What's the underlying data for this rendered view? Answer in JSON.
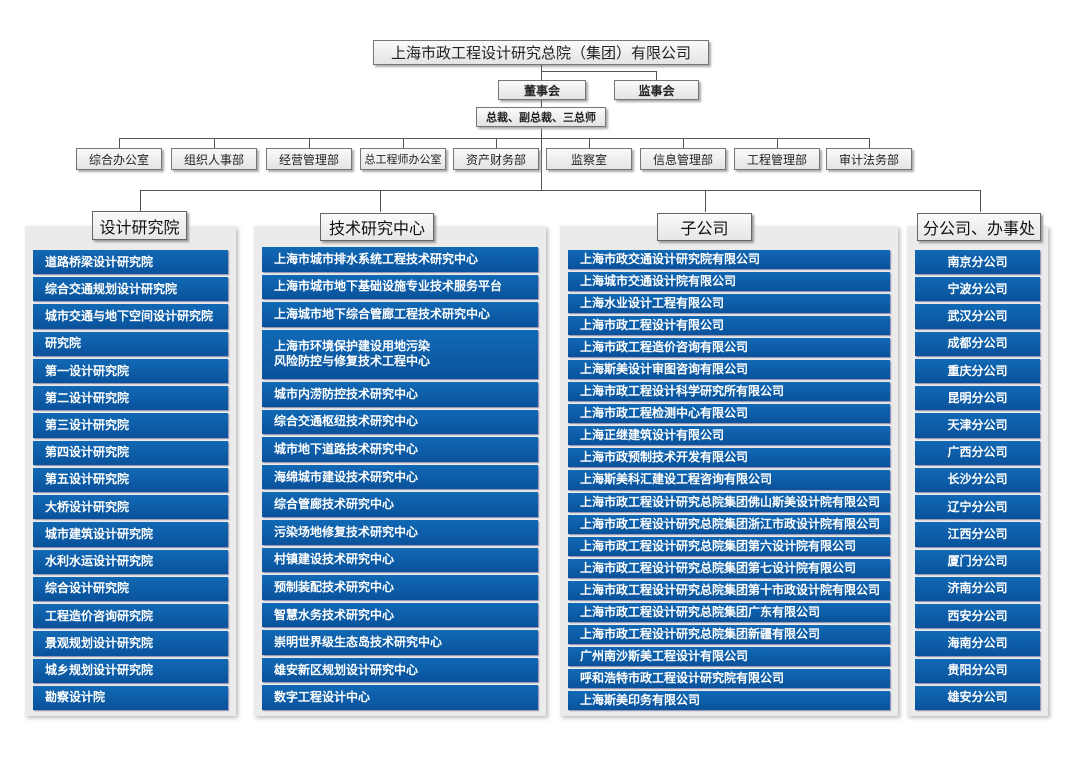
{
  "top": {
    "company": "上海市政工程设计研究总院（集团）有限公司",
    "board": "董事会",
    "supervisors": "监事会",
    "executives": "总裁、副总裁、三总师"
  },
  "departments": [
    "综合办公室",
    "组织人事部",
    "经营管理部",
    "总工程师办公室",
    "资产财务部",
    "监察室",
    "信息管理部",
    "工程管理部",
    "审计法务部"
  ],
  "columns": [
    {
      "title": "设计研究院",
      "items": [
        "道路桥梁设计研究院",
        "综合交通规划设计研究院",
        "城市交通与地下空间设计研究院",
        "研究院",
        "第一设计研究院",
        "第二设计研究院",
        "第三设计研究院",
        "第四设计研究院",
        "第五设计研究院",
        "大桥设计研究院",
        "城市建筑设计研究院",
        "水利水运设计研究院",
        "综合设计研究院",
        "工程造价咨询研究院",
        "景观规划设计研究院",
        "城乡规划设计研究院",
        "勘察设计院"
      ]
    },
    {
      "title": "技术研究中心",
      "items": [
        "上海市城市排水系统工程技术研究中心",
        "上海市城市地下基础设施专业技术服务平台",
        "上海城市地下综合管廊工程技术研究中心",
        "上海市环境保护建设用地污染\n风险防控与修复技术工程中心",
        "城市内涝防控技术研究中心",
        "综合交通枢纽技术研究中心",
        "城市地下道路技术研究中心",
        "海绵城市建设技术研究中心",
        "综合管廊技术研究中心",
        "污染场地修复技术研究中心",
        "村镇建设技术研究中心",
        "预制装配技术研究中心",
        "智慧水务技术研究中心",
        "崇明世界级生态岛技术研究中心",
        "雄安新区规划设计研究中心",
        "数字工程设计中心"
      ]
    },
    {
      "title": "子公司",
      "items": [
        "上海市政交通设计研究院有限公司",
        "上海城市交通设计院有限公司",
        "上海水业设计工程有限公司",
        "上海市政工程设计有限公司",
        "上海市政工程造价咨询有限公司",
        "上海斯美设计审图咨询有限公司",
        "上海市政工程设计科学研究所有限公司",
        "上海市政工程检测中心有限公司",
        "上海正继建筑设计有限公司",
        "上海市政预制技术开发有限公司",
        "上海斯美科汇建设工程咨询有限公司",
        "上海市政工程设计研究总院集团佛山斯美设计院有限公司",
        "上海市政工程设计研究总院集团浙江市政设计院有限公司",
        "上海市政工程设计研究总院集团第六设计院有限公司",
        "上海市政工程设计研究总院集团第七设计院有限公司",
        "上海市政工程设计研究总院集团第十市政设计院有限公司",
        "上海市政工程设计研究总院集团广东有限公司",
        "上海市政工程设计研究总院集团新疆有限公司",
        "广州南沙斯美工程设计有限公司",
        "呼和浩特市政工程设计研究院有限公司",
        "上海斯美印务有限公司"
      ]
    },
    {
      "title": "分公司、办事处",
      "items": [
        "南京分公司",
        "宁波分公司",
        "武汉分公司",
        "成都分公司",
        "重庆分公司",
        "昆明分公司",
        "天津分公司",
        "广西分公司",
        "长沙分公司",
        "辽宁分公司",
        "江西分公司",
        "厦门分公司",
        "济南分公司",
        "西安分公司",
        "海南分公司",
        "贵阳分公司",
        "雄安分公司"
      ]
    }
  ],
  "colors": {
    "item_blue": "#0b5ea8",
    "panel_bg": "#ebebeb"
  }
}
